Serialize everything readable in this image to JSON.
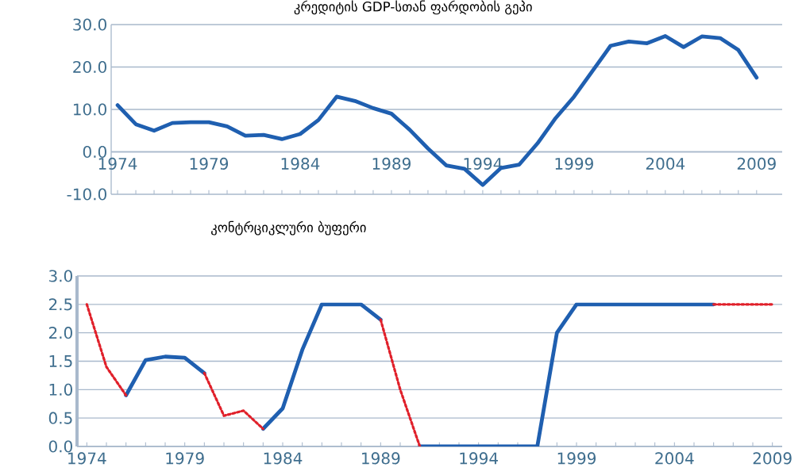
{
  "chart_data": [
    {
      "type": "line",
      "title": "კრედიტის GDP-სთან ფარდობის გეპი",
      "categories": [
        "1974",
        null,
        null,
        null,
        null,
        "1979",
        null,
        null,
        null,
        null,
        "1984",
        null,
        null,
        null,
        null,
        "1989",
        null,
        null,
        null,
        null,
        "1994",
        null,
        null,
        null,
        null,
        "1999",
        null,
        null,
        null,
        null,
        "2004",
        null,
        null,
        null,
        null,
        "2009"
      ],
      "series": [
        {
          "color": "#1f5fb0",
          "values": [
            11,
            6.5,
            5,
            6.8,
            7,
            7,
            6,
            3.8,
            4,
            3,
            4.2,
            7.5,
            13,
            12,
            10.3,
            9,
            5.2,
            0.8,
            -3.2,
            -4,
            -7.8,
            -3.8,
            -3,
            2,
            8,
            13,
            19,
            25,
            26,
            25.6,
            27.3,
            24.7,
            27.2,
            26.8,
            24,
            17.5
          ]
        }
      ],
      "ylim": [
        -10,
        30
      ],
      "yticks": [
        {
          "value": -10,
          "label": "-10.0"
        },
        {
          "value": 0,
          "label": "0.0"
        },
        {
          "value": 10,
          "label": "10.0"
        },
        {
          "value": 20,
          "label": "20.0"
        },
        {
          "value": 30,
          "label": "30.0"
        }
      ],
      "grid": "y",
      "line_style": "solid"
    },
    {
      "type": "line",
      "title": "კონტრციკლური ბუფერი",
      "categories": [
        "1974",
        null,
        null,
        null,
        null,
        "1979",
        null,
        null,
        null,
        null,
        "1984",
        null,
        null,
        null,
        null,
        "1989",
        null,
        null,
        null,
        null,
        "1994",
        null,
        null,
        null,
        null,
        "1999",
        null,
        null,
        null,
        null,
        "2004",
        null,
        null,
        null,
        null,
        "2009"
      ],
      "series": [
        {
          "color": "#1f5fb0",
          "line_style": "solid",
          "values": [
            null,
            null,
            0.9,
            1.52,
            1.58,
            1.56,
            1.29,
            null,
            null,
            0.31,
            0.67,
            1.7,
            2.5,
            2.5,
            2.5,
            2.23,
            null,
            0,
            0,
            0,
            0,
            0,
            0,
            0,
            2.0,
            2.5,
            2.5,
            2.5,
            2.5,
            2.5,
            2.5,
            2.5,
            2.5,
            null,
            null,
            null
          ]
        },
        {
          "color": "#e0202a",
          "line_style": "dotted",
          "values": [
            2.5,
            1.4,
            0.9,
            null,
            null,
            null,
            1.29,
            0.54,
            0.63,
            0.31,
            null,
            null,
            null,
            null,
            null,
            2.23,
            1.0,
            0,
            null,
            null,
            null,
            null,
            null,
            null,
            null,
            null,
            null,
            null,
            null,
            null,
            null,
            null,
            2.5,
            2.5,
            2.5,
            2.5
          ]
        }
      ],
      "ylim": [
        0,
        3
      ],
      "yticks": [
        {
          "value": 0,
          "label": "0.0"
        },
        {
          "value": 0.5,
          "label": "0.5"
        },
        {
          "value": 1,
          "label": "1.0"
        },
        {
          "value": 1.5,
          "label": "1.5"
        },
        {
          "value": 2,
          "label": "2.0"
        },
        {
          "value": 2.5,
          "label": "2.5"
        },
        {
          "value": 3,
          "label": "3.0"
        }
      ],
      "grid": "y"
    }
  ]
}
